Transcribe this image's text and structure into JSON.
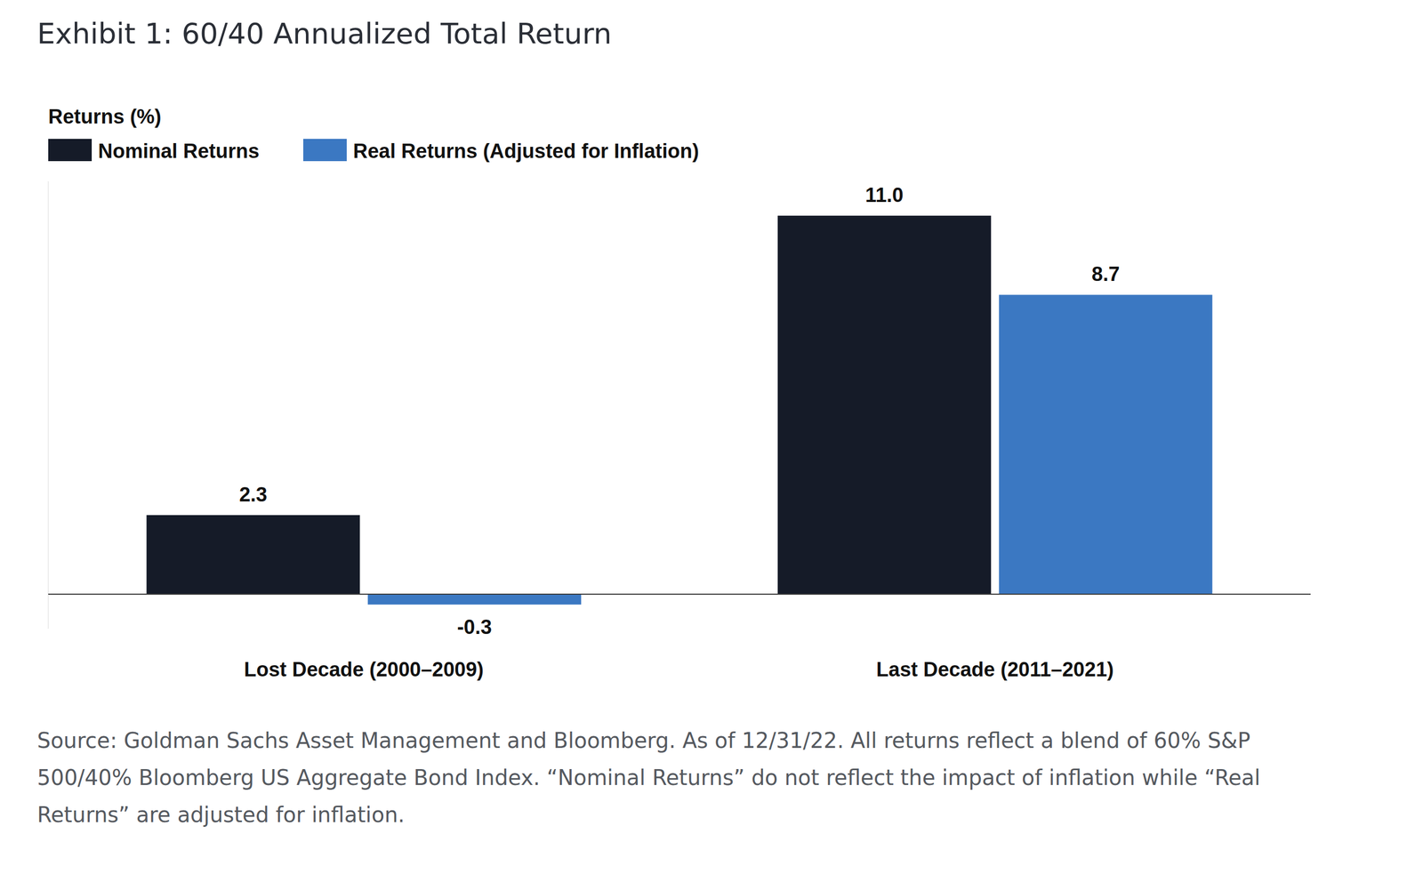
{
  "chart_data": {
    "type": "bar",
    "title": "Exhibit 1: 60/40 Annualized Total Return",
    "y_label": "Returns (%)",
    "categories": [
      "Lost Decade (2000–2009)",
      "Last Decade (2011–2021)"
    ],
    "series": [
      {
        "name": "Nominal Returns",
        "color": "#151b28",
        "values": [
          2.3,
          11.0
        ],
        "value_labels": [
          "2.3",
          "11.0"
        ]
      },
      {
        "name": "Real Returns (Adjusted for Inflation)",
        "color": "#3b78c2",
        "values": [
          -0.3,
          8.7
        ]
      }
    ],
    "ylim": [
      -1,
      12
    ],
    "yticks": [
      0
    ],
    "tick_labels": "x",
    "grid": false,
    "legend": "top-left",
    "data_labels": true,
    "note": "Source: Goldman Sachs Asset Management and Bloomberg. As of 12/31/22. All returns reflect a blend of 60% S&P 500/40% Bloomberg US Aggregate Bond Index. “Nominal Returns” do not reflect the impact of inflation while “Real Returns” are adjusted for inflation."
  }
}
